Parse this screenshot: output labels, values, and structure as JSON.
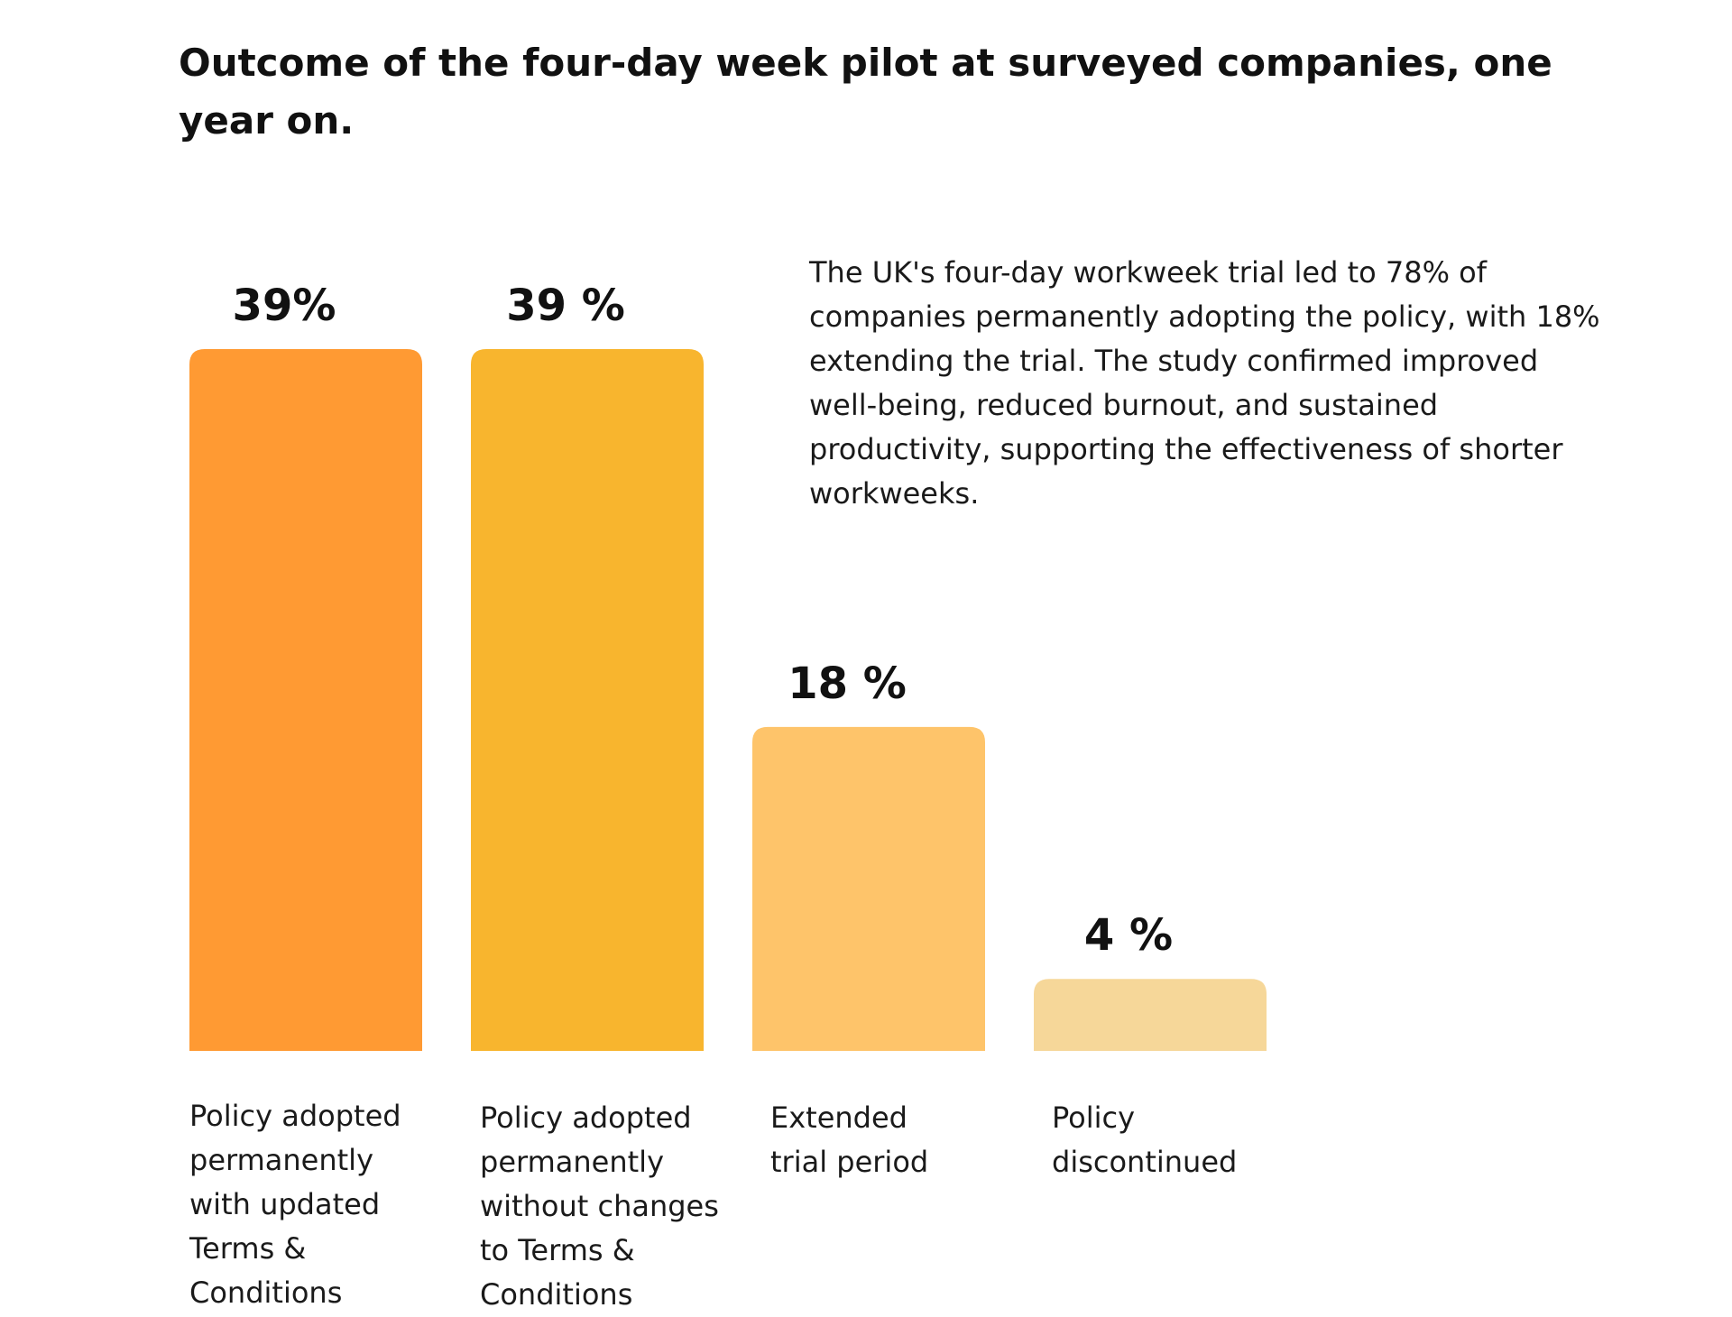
{
  "header": {
    "title": "Outcome of the four-day week pilot at surveyed companies, one year on."
  },
  "description": "The UK's four-day workweek trial led to 78% of companies permanently adopting the policy, with 18% extending the trial. The study confirmed improved well-being, reduced burnout, and sustained productivity, supporting the effectiveness of shorter workweeks.",
  "chart_data": {
    "type": "bar",
    "title": "Outcome of the four-day week pilot at surveyed companies, one year on.",
    "categories": [
      "Policy adopted\npermanently\nwith updated\nTerms &\nConditions",
      "Policy adopted\npermanently\nwithout changes\nto Terms &\nConditions",
      "Extended\ntrial period",
      "Policy\ndiscontinued"
    ],
    "values": [
      39,
      39,
      18,
      4
    ],
    "data_labels": [
      "39%",
      "39 %",
      "18 %",
      "4 %"
    ],
    "colors": [
      "#FF9A33",
      "#F8B52E",
      "#FEC46A",
      "#F6D799"
    ],
    "unit": "%",
    "ylim": [
      0,
      39
    ],
    "grid": false,
    "legend": "none",
    "xlabel": "",
    "ylabel": ""
  }
}
